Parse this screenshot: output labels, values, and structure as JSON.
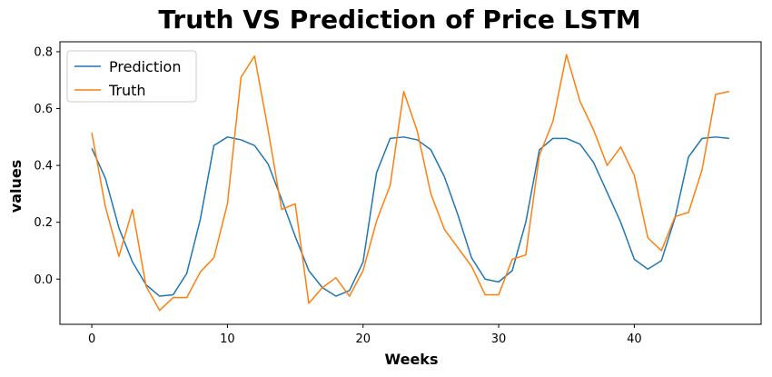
{
  "colors": {
    "prediction": "#1f77b4",
    "truth": "#ff7f0e",
    "axis": "#000000",
    "background": "#ffffff",
    "legend_border": "#cccccc"
  },
  "chart_data": {
    "type": "line",
    "title": "Truth VS Prediction of Price LSTM",
    "xlabel": "Weeks",
    "ylabel": "values",
    "xlim": [
      -2.35,
      49.35
    ],
    "ylim": [
      -0.159,
      0.835
    ],
    "xticks": [
      0,
      10,
      20,
      30,
      40
    ],
    "xtick_labels": [
      "0",
      "10",
      "20",
      "30",
      "40"
    ],
    "yticks": [
      0.0,
      0.2,
      0.4,
      0.6,
      0.8
    ],
    "ytick_labels": [
      "0.0",
      "0.2",
      "0.4",
      "0.6",
      "0.8"
    ],
    "grid": false,
    "legend_position": "top-left",
    "x": [
      0,
      1,
      2,
      3,
      4,
      5,
      6,
      7,
      8,
      9,
      10,
      11,
      12,
      13,
      14,
      15,
      16,
      17,
      18,
      19,
      20,
      21,
      22,
      23,
      24,
      25,
      26,
      27,
      28,
      29,
      30,
      31,
      32,
      33,
      34,
      35,
      36,
      37,
      38,
      39,
      40,
      41,
      42,
      43,
      44,
      45,
      46,
      47
    ],
    "series": [
      {
        "name": "Prediction",
        "color": "#1f77b4",
        "values": [
          0.46,
          0.355,
          0.18,
          0.06,
          -0.02,
          -0.06,
          -0.055,
          0.02,
          0.21,
          0.47,
          0.5,
          0.49,
          0.47,
          0.405,
          0.28,
          0.15,
          0.03,
          -0.03,
          -0.06,
          -0.04,
          0.06,
          0.375,
          0.495,
          0.5,
          0.49,
          0.455,
          0.36,
          0.225,
          0.075,
          0.0,
          -0.01,
          0.03,
          0.2,
          0.455,
          0.495,
          0.495,
          0.475,
          0.41,
          0.305,
          0.2,
          0.07,
          0.035,
          0.065,
          0.215,
          0.43,
          0.495,
          0.5,
          0.495
        ]
      },
      {
        "name": "Truth",
        "color": "#ff7f0e",
        "values": [
          0.515,
          0.255,
          0.08,
          0.245,
          -0.025,
          -0.11,
          -0.065,
          -0.065,
          0.025,
          0.075,
          0.265,
          0.71,
          0.785,
          0.525,
          0.245,
          0.265,
          -0.085,
          -0.03,
          0.005,
          -0.06,
          0.03,
          0.205,
          0.33,
          0.66,
          0.52,
          0.3,
          0.175,
          0.11,
          0.045,
          -0.055,
          -0.055,
          0.07,
          0.085,
          0.435,
          0.555,
          0.79,
          0.625,
          0.525,
          0.4,
          0.465,
          0.365,
          0.145,
          0.1,
          0.22,
          0.235,
          0.385,
          0.65,
          0.66
        ]
      }
    ]
  }
}
